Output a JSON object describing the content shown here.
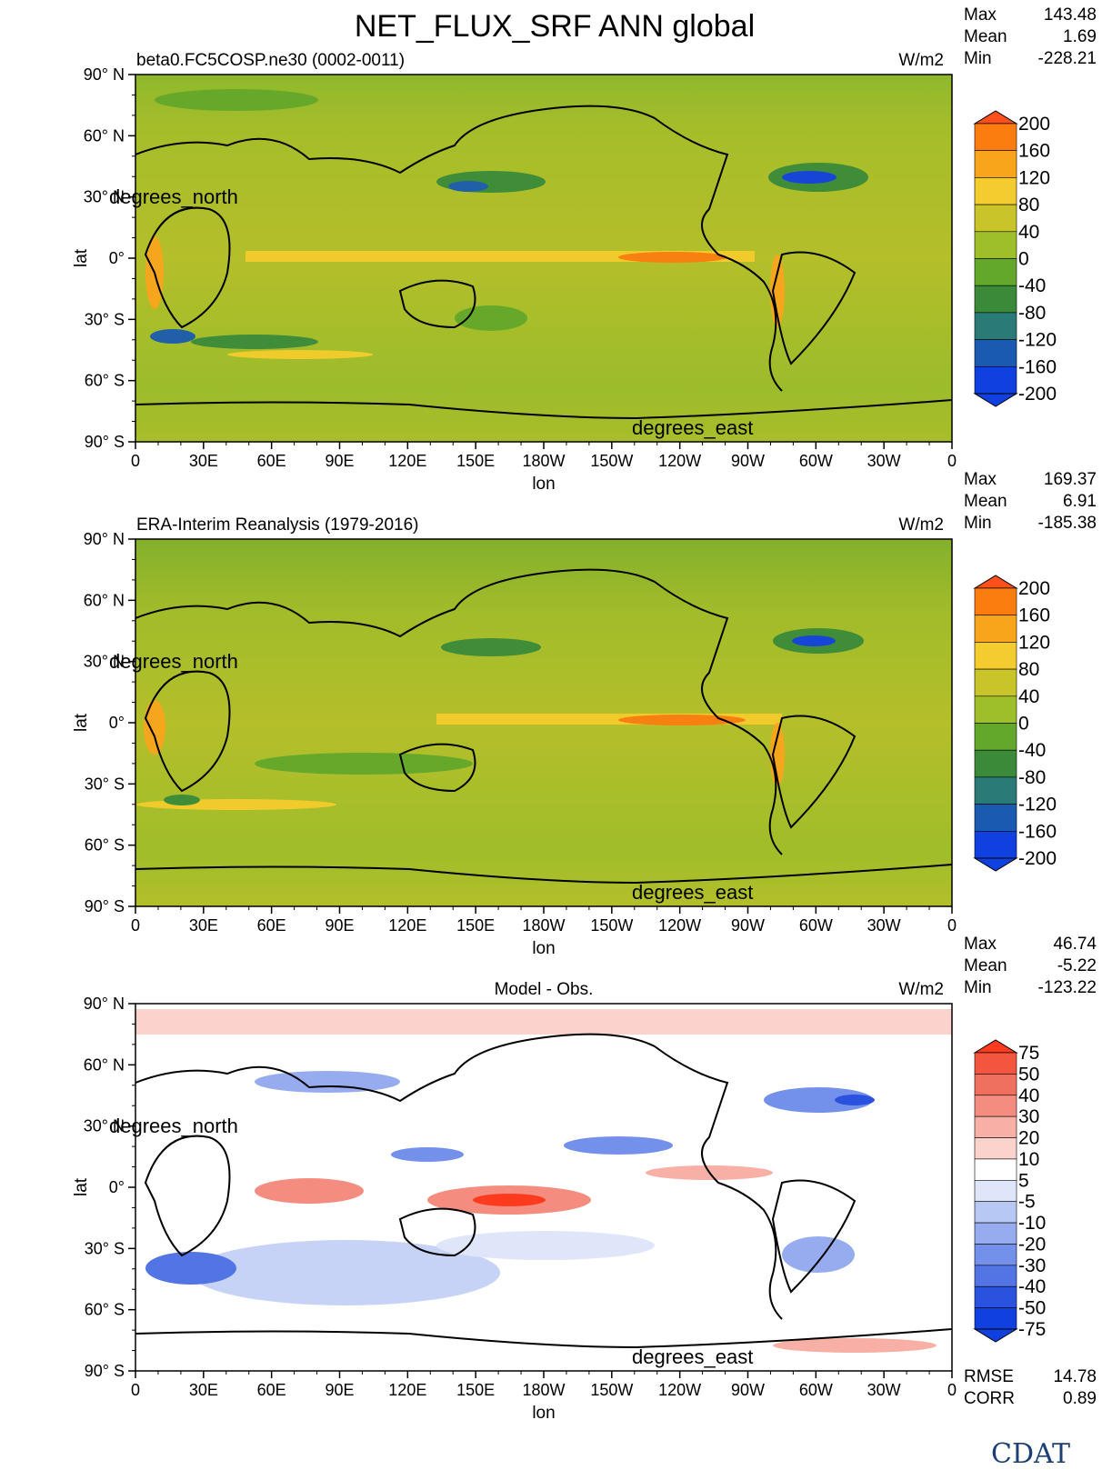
{
  "title": "NET_FLUX_SRF ANN global",
  "panels": [
    {
      "id": "model",
      "name": "beta0.FC5COSP.ne30 (0002-0011)",
      "units": "W/m2",
      "stats": {
        "max_label": "Max",
        "max": "143.48",
        "mean_label": "Mean",
        "mean": "1.69",
        "min_label": "Min",
        "min": "-228.21"
      },
      "colorbar": {
        "levels": [
          "200",
          "160",
          "120",
          "80",
          "40",
          "0",
          "-40",
          "-80",
          "-120",
          "-160",
          "-200"
        ],
        "colors": [
          "#ff4f1a",
          "#fb7d10",
          "#f9a51c",
          "#f5cc2d",
          "#c8c42a",
          "#9fbf2a",
          "#63a82a",
          "#3a8a3a",
          "#2a7a78",
          "#1a5ab0",
          "#1040e0"
        ]
      }
    },
    {
      "id": "obs",
      "name": "ERA-Interim Reanalysis (1979-2016)",
      "units": "W/m2",
      "stats": {
        "max_label": "Max",
        "max": "169.37",
        "mean_label": "Mean",
        "mean": "6.91",
        "min_label": "Min",
        "min": "-185.38"
      },
      "colorbar": {
        "levels": [
          "200",
          "160",
          "120",
          "80",
          "40",
          "0",
          "-40",
          "-80",
          "-120",
          "-160",
          "-200"
        ],
        "colors": [
          "#ff4f1a",
          "#fb7d10",
          "#f9a51c",
          "#f5cc2d",
          "#c8c42a",
          "#9fbf2a",
          "#63a82a",
          "#3a8a3a",
          "#2a7a78",
          "#1a5ab0",
          "#1040e0"
        ]
      }
    },
    {
      "id": "diff",
      "name": "Model - Obs.",
      "units": "W/m2",
      "stats": {
        "max_label": "Max",
        "max": "46.74",
        "mean_label": "Mean",
        "mean": "-5.22",
        "min_label": "Min",
        "min": "-123.22"
      },
      "extra": {
        "rmse_label": "RMSE",
        "rmse": "14.78",
        "corr_label": "CORR",
        "corr": "0.89"
      },
      "colorbar": {
        "levels": [
          "75",
          "50",
          "40",
          "30",
          "20",
          "10",
          "5",
          "-5",
          "-10",
          "-20",
          "-30",
          "-40",
          "-50",
          "-75"
        ],
        "colors": [
          "#ff3b1f",
          "#f4553f",
          "#f07060",
          "#f48d80",
          "#f8b0a6",
          "#fbd3cc",
          "#ffffff",
          "#dfe6fa",
          "#b8c8f4",
          "#96acef",
          "#7390ea",
          "#5274e4",
          "#2b52df",
          "#1040e0"
        ]
      }
    }
  ],
  "axes": {
    "ylabel": "lat",
    "xlabel": "lon",
    "y_units_label": "degrees_north",
    "x_units_label": "degrees_east",
    "yticks": [
      "90° N",
      "60° N",
      "30° N",
      "0°",
      "30° S",
      "60° S",
      "90° S"
    ],
    "xticks": [
      "0",
      "30E",
      "60E",
      "90E",
      "120E",
      "150E",
      "180W",
      "150W",
      "120W",
      "90W",
      "60W",
      "30W",
      "0"
    ]
  },
  "chart_data": [
    {
      "type": "heatmap",
      "title": "beta0.FC5COSP.ne30 (0002-0011)",
      "units": "W/m2",
      "xlim": [
        0,
        360
      ],
      "ylim": [
        -90,
        90
      ],
      "stats": {
        "max": 143.48,
        "mean": 1.69,
        "min": -228.21
      },
      "levels": [
        200,
        160,
        120,
        80,
        40,
        0,
        -40,
        -80,
        -120,
        -160,
        -200
      ]
    },
    {
      "type": "heatmap",
      "title": "ERA-Interim Reanalysis (1979-2016)",
      "units": "W/m2",
      "xlim": [
        0,
        360
      ],
      "ylim": [
        -90,
        90
      ],
      "stats": {
        "max": 169.37,
        "mean": 6.91,
        "min": -185.38
      },
      "levels": [
        200,
        160,
        120,
        80,
        40,
        0,
        -40,
        -80,
        -120,
        -160,
        -200
      ]
    },
    {
      "type": "heatmap",
      "title": "Model - Obs.",
      "units": "W/m2",
      "xlim": [
        0,
        360
      ],
      "ylim": [
        -90,
        90
      ],
      "stats": {
        "max": 46.74,
        "mean": -5.22,
        "min": -123.22,
        "rmse": 14.78,
        "corr": 0.89
      },
      "levels": [
        75,
        50,
        40,
        30,
        20,
        10,
        5,
        -5,
        -10,
        -20,
        -30,
        -40,
        -50,
        -75
      ]
    }
  ],
  "logo": {
    "text": "CDAT"
  }
}
